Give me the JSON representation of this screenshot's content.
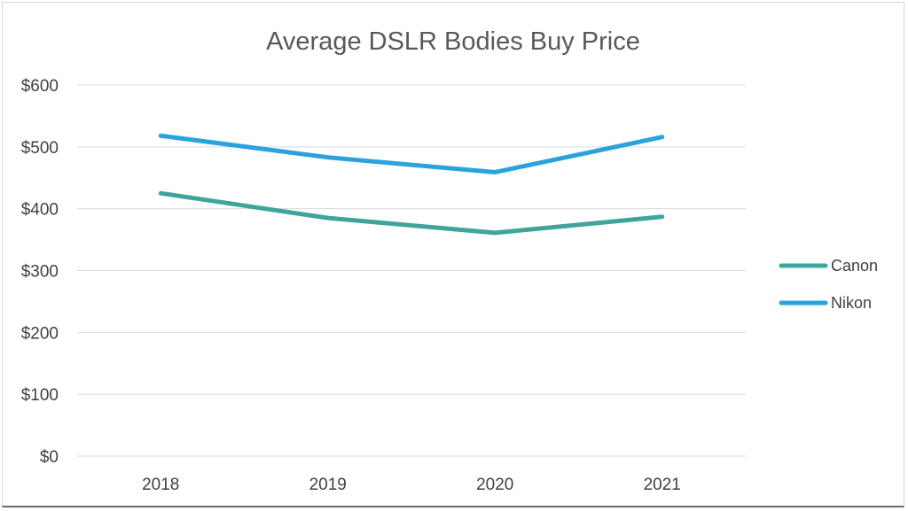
{
  "chart_data": {
    "type": "line",
    "title": "Average DSLR Bodies Buy Price",
    "xlabel": "",
    "ylabel": "",
    "categories": [
      "2018",
      "2019",
      "2020",
      "2021"
    ],
    "ylim": [
      0,
      600
    ],
    "y_ticks": [
      0,
      100,
      200,
      300,
      400,
      500,
      600
    ],
    "y_tick_labels": [
      "$0",
      "$100",
      "$200",
      "$300",
      "$400",
      "$500",
      "$600"
    ],
    "grid": true,
    "legend_position": "right",
    "series": [
      {
        "name": "Canon",
        "color": "#3fa59a",
        "values": [
          425,
          385,
          361,
          387
        ]
      },
      {
        "name": "Nikon",
        "color": "#2aa3dd",
        "values": [
          518,
          483,
          459,
          516
        ]
      }
    ]
  }
}
